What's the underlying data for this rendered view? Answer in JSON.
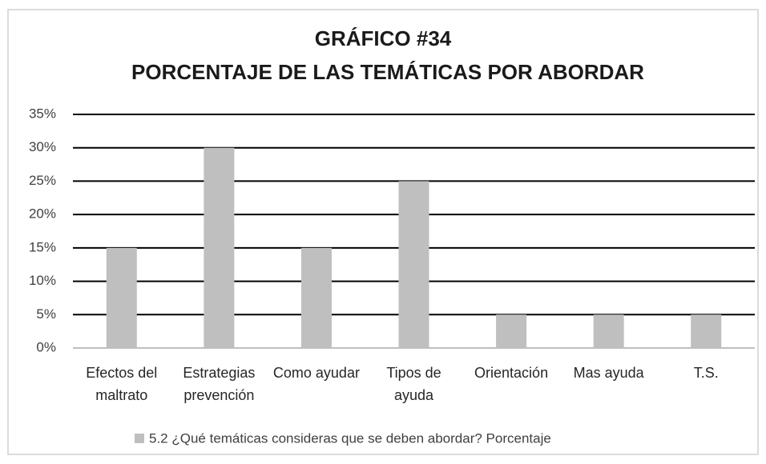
{
  "chart_data": {
    "type": "bar",
    "title": "GRÁFICO #34",
    "subtitle": "PORCENTAJE DE LAS TEMÁTICAS POR ABORDAR",
    "categories": [
      "Efectos del maltrato",
      "Estrategias prevención",
      "Como ayudar",
      "Tipos de ayuda",
      "Orientación",
      "Mas ayuda",
      "T.S."
    ],
    "series": [
      {
        "name": "5.2 ¿Qué temáticas consideras que se deben abordar? Porcentaje",
        "color": "#bfbfbf",
        "values": [
          15,
          30,
          15,
          25,
          5,
          5,
          5
        ]
      }
    ],
    "ylim": [
      0,
      35
    ],
    "yticks": [
      {
        "value": 0,
        "label": "0%"
      },
      {
        "value": 5,
        "label": "5%"
      },
      {
        "value": 10,
        "label": "10%"
      },
      {
        "value": 15,
        "label": "15%"
      },
      {
        "value": 20,
        "label": "20%"
      },
      {
        "value": 25,
        "label": "25%"
      },
      {
        "value": 30,
        "label": "30%"
      },
      {
        "value": 35,
        "label": "35%"
      }
    ],
    "grid": true,
    "legend": "bottom"
  }
}
